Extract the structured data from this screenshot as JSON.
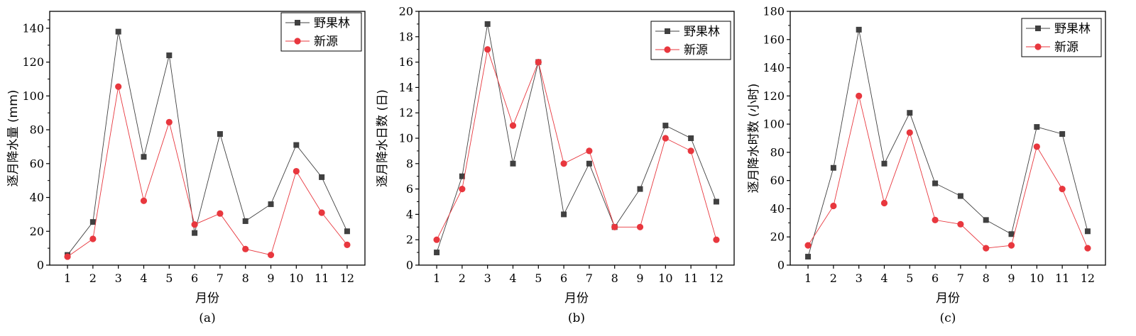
{
  "chart_data": [
    {
      "type": "line",
      "categories": [
        "1",
        "2",
        "3",
        "4",
        "5",
        "6",
        "7",
        "8",
        "9",
        "10",
        "11",
        "12"
      ],
      "series": [
        {
          "name": "野果林",
          "values": [
            6,
            25.5,
            138,
            64,
            124,
            19,
            77.5,
            26,
            36,
            71,
            52,
            20
          ],
          "color": "#404040",
          "marker": "square"
        },
        {
          "name": "新源",
          "values": [
            5,
            15.5,
            105.5,
            38,
            84.5,
            24,
            30.5,
            9.5,
            6,
            55.5,
            31,
            12
          ],
          "color": "#e8373e",
          "marker": "circle"
        }
      ],
      "xlabel": "月份",
      "ylabel": "逐月降水量 (mm)",
      "ylim": [
        0,
        150
      ],
      "yticks": [
        0,
        20,
        40,
        60,
        80,
        100,
        120,
        140
      ],
      "caption": "(a)",
      "legend": "top-right",
      "grid": false
    },
    {
      "type": "line",
      "categories": [
        "1",
        "2",
        "3",
        "4",
        "5",
        "6",
        "7",
        "8",
        "9",
        "10",
        "11",
        "12"
      ],
      "series": [
        {
          "name": "野果林",
          "values": [
            1,
            7,
            19,
            8,
            16,
            4,
            8,
            3,
            6,
            11,
            10,
            5
          ],
          "color": "#404040",
          "marker": "square"
        },
        {
          "name": "新源",
          "values": [
            2,
            6,
            17,
            11,
            16,
            8,
            9,
            3,
            3,
            10,
            9,
            2
          ],
          "color": "#e8373e",
          "marker": "circle"
        }
      ],
      "xlabel": "月份",
      "ylabel": "逐月降水日数 (日)",
      "ylim": [
        0,
        20
      ],
      "yticks": [
        0,
        2,
        4,
        6,
        8,
        10,
        12,
        14,
        16,
        18,
        20
      ],
      "caption": "(b)",
      "legend": "top-right",
      "grid": false
    },
    {
      "type": "line",
      "categories": [
        "1",
        "2",
        "3",
        "4",
        "5",
        "6",
        "7",
        "8",
        "9",
        "10",
        "11",
        "12"
      ],
      "series": [
        {
          "name": "野果林",
          "values": [
            6,
            69,
            167,
            72,
            108,
            58,
            49,
            32,
            22,
            98,
            93,
            24
          ],
          "color": "#404040",
          "marker": "square"
        },
        {
          "name": "新源",
          "values": [
            14,
            42,
            120,
            44,
            94,
            32,
            29,
            12,
            14,
            84,
            54,
            12
          ],
          "color": "#e8373e",
          "marker": "circle"
        }
      ],
      "xlabel": "月份",
      "ylabel": "逐月降水时数 (小时)",
      "ylim": [
        0,
        180
      ],
      "yticks": [
        0,
        20,
        40,
        60,
        80,
        100,
        120,
        140,
        160,
        180
      ],
      "caption": "(c)",
      "legend": "top-right",
      "grid": false
    }
  ]
}
